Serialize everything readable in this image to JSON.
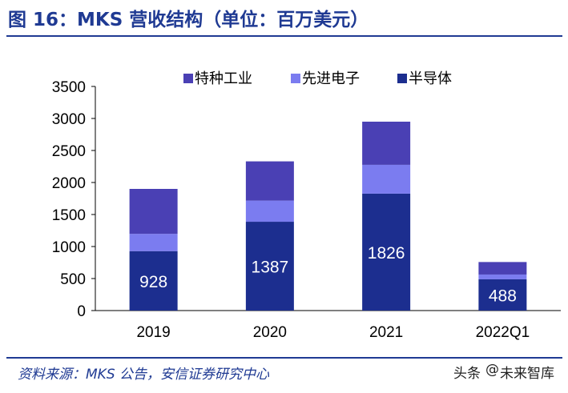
{
  "header": {
    "title": "图 16：MKS 营收结构（单位：百万美元）"
  },
  "footer": {
    "source": "资料来源：MKS 公告，安信证券研究中心",
    "watermark_prefix": "头条",
    "watermark_at": "@",
    "watermark_name": "未来智库"
  },
  "colors": {
    "semiconductor": "#1c2e8f",
    "electronics": "#7b7cf0",
    "industrial": "#4a40b4",
    "title": "#1f3a93"
  },
  "chart_data": {
    "type": "bar",
    "stacked": true,
    "title": "",
    "xlabel": "",
    "ylabel": "",
    "ylim": [
      0,
      3500
    ],
    "yticks": [
      0,
      500,
      1000,
      1500,
      2000,
      2500,
      3000,
      3500
    ],
    "grid": false,
    "legend_position": "top",
    "categories": [
      "2019",
      "2020",
      "2021",
      "2022Q1"
    ],
    "series": [
      {
        "name": "半导体",
        "color": "#1c2e8f",
        "values": [
          928,
          1387,
          1826,
          488
        ],
        "labeled": true
      },
      {
        "name": "先进电子",
        "color": "#7b7cf0",
        "values": [
          270,
          330,
          450,
          75
        ],
        "labeled": false
      },
      {
        "name": "特种工业",
        "color": "#4a40b4",
        "values": [
          702,
          613,
          674,
          195
        ],
        "labeled": false
      }
    ],
    "legend_order": [
      "特种工业",
      "先进电子",
      "半导体"
    ]
  }
}
